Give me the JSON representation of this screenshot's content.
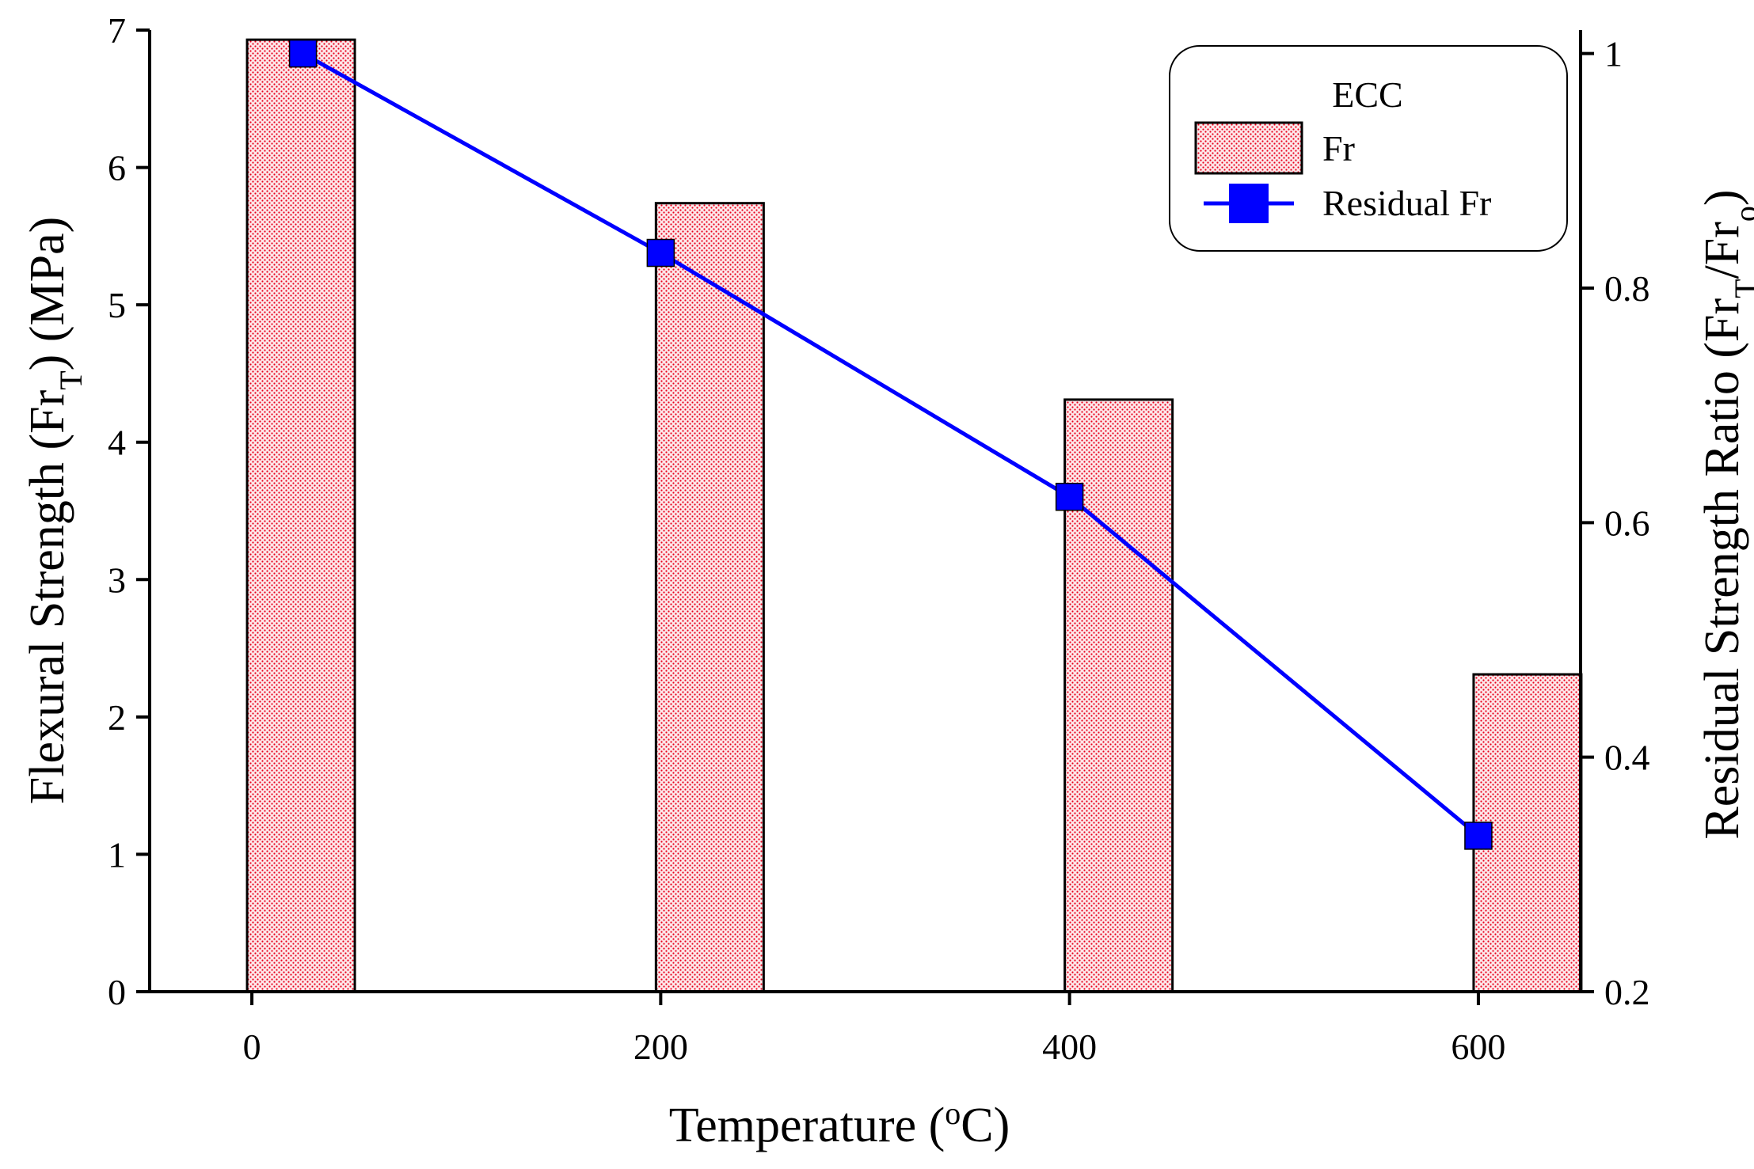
{
  "chart_data": {
    "type": "bar+line",
    "categories": [
      0,
      200,
      400,
      600
    ],
    "bars": {
      "name": "Fr",
      "values": [
        6.93,
        5.74,
        4.31,
        2.31
      ],
      "color": "#e8001c",
      "fill": "#fbe3e5"
    },
    "line": {
      "name": "Residual Fr",
      "x": [
        25,
        200,
        400,
        600
      ],
      "y": [
        1.0,
        0.83,
        0.622,
        0.333
      ],
      "color": "#0000ff"
    },
    "x_axis": {
      "title": "Temperature (",
      "title_sup": "o",
      "title_end": "C)",
      "ticks": [
        "0",
        "200",
        "400",
        "600"
      ],
      "xlim": [
        -50,
        650
      ]
    },
    "y_left": {
      "title_main": "Flexural Strength (Fr",
      "title_sub": "T",
      "title_end": ") (MPa)",
      "ticks": [
        "0",
        "1",
        "2",
        "3",
        "4",
        "5",
        "6",
        "7"
      ],
      "ylim": [
        0,
        7
      ]
    },
    "y_right": {
      "title_main": "Residual Strength Ratio (Fr",
      "title_sub1": "T",
      "title_mid": "/Fr",
      "title_sub2": "o",
      "title_end": ")",
      "ticks": [
        "0.2",
        "0.4",
        "0.6",
        "0.8",
        "1"
      ],
      "ylim": [
        0.2,
        1.02
      ]
    },
    "legend": {
      "title": "ECC",
      "bar_label": "Fr",
      "line_label": "Residual Fr",
      "position": "top-right"
    }
  }
}
